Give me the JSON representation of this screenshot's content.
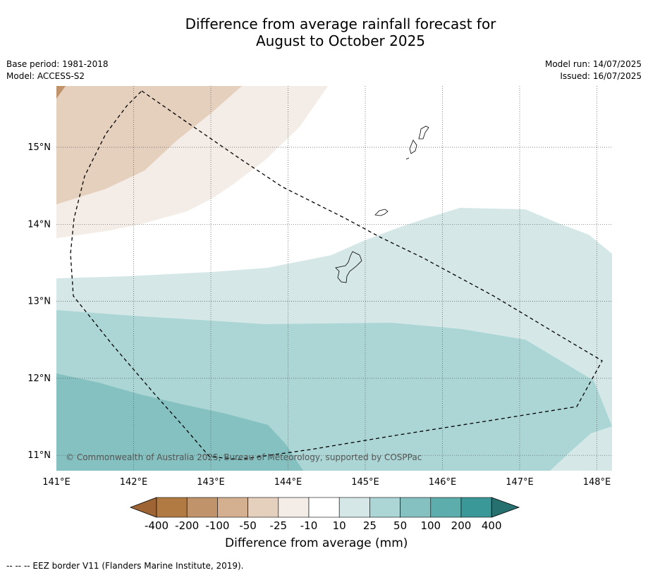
{
  "title_line1": "Difference from average rainfall forecast for",
  "title_line2": "August to October 2025",
  "meta_left": [
    "Base period: 1981-2018",
    "Model: ACCESS-S2"
  ],
  "meta_right": [
    "Model run: 14/07/2025",
    "Issued: 16/07/2025"
  ],
  "copyright": "© Commonwealth of Australia 2025, Bureau of Meteorology, supported by COSPPac",
  "footer": "-- -- -- EEZ border V11 (Flanders Marine Institute, 2019).",
  "lon_ticks": [
    "141°E",
    "142°E",
    "143°E",
    "144°E",
    "145°E",
    "146°E",
    "147°E",
    "148°E"
  ],
  "lat_ticks": [
    "15°N",
    "14°N",
    "13°N",
    "12°N",
    "11°N"
  ],
  "colorbar": {
    "title": "Difference from average (mm)",
    "tick_labels": [
      "-400",
      "-200",
      "-100",
      "-50",
      "-25",
      "-10",
      "10",
      "25",
      "50",
      "100",
      "200",
      "400"
    ],
    "colors": [
      "#9e6434",
      "#b07a42",
      "#c0936a",
      "#d5b090",
      "#e5cfbd",
      "#f4ece6",
      "#ffffff",
      "#d5e8e7",
      "#acd6d5",
      "#85c1c0",
      "#5dadac",
      "#3a9998",
      "#26706f"
    ]
  }
}
